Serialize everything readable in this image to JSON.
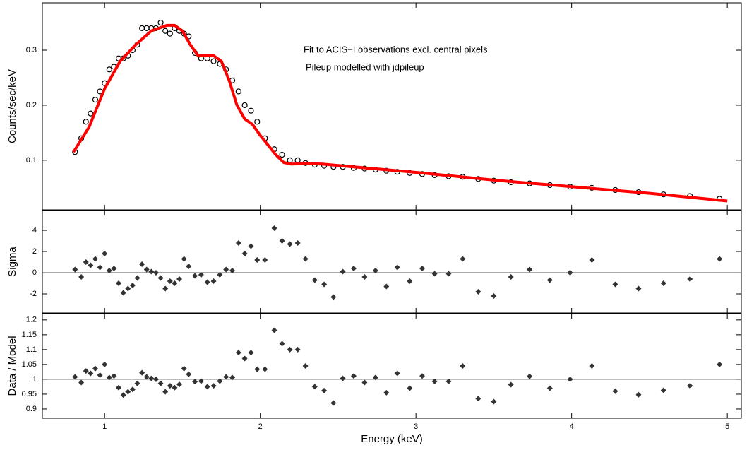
{
  "chart_data": [
    {
      "type": "scatter",
      "ylabel": "Counts/sec/keV",
      "marker": "circle",
      "color": "#000000",
      "annotations": [
        "Fit to ACIS−I observations excl. central pixels",
        "Pileup modelled with jdpileup"
      ],
      "xlim": [
        0.6,
        5.09
      ],
      "xticks": [
        1,
        2,
        3,
        4,
        5
      ],
      "ylim": [
        0.01,
        0.386
      ],
      "yticks": [
        0.1,
        0.2,
        0.3
      ],
      "x": [
        0.81,
        0.85,
        0.88,
        0.91,
        0.94,
        0.97,
        1.0,
        1.03,
        1.06,
        1.09,
        1.12,
        1.15,
        1.18,
        1.21,
        1.24,
        1.27,
        1.3,
        1.33,
        1.36,
        1.39,
        1.42,
        1.45,
        1.48,
        1.51,
        1.54,
        1.58,
        1.62,
        1.66,
        1.7,
        1.74,
        1.78,
        1.82,
        1.86,
        1.9,
        1.94,
        1.98,
        2.03,
        2.09,
        2.14,
        2.19,
        2.24,
        2.29,
        2.35,
        2.41,
        2.47,
        2.53,
        2.6,
        2.67,
        2.74,
        2.81,
        2.88,
        2.96,
        3.04,
        3.12,
        3.21,
        3.3,
        3.4,
        3.5,
        3.61,
        3.73,
        3.86,
        3.99,
        4.13,
        4.28,
        4.43,
        4.59,
        4.76,
        4.95
      ],
      "values": [
        0.115,
        0.14,
        0.17,
        0.185,
        0.21,
        0.225,
        0.24,
        0.265,
        0.27,
        0.285,
        0.285,
        0.29,
        0.3,
        0.31,
        0.34,
        0.34,
        0.34,
        0.34,
        0.35,
        0.335,
        0.33,
        0.34,
        0.335,
        0.33,
        0.325,
        0.295,
        0.285,
        0.285,
        0.28,
        0.275,
        0.265,
        0.245,
        0.225,
        0.2,
        0.19,
        0.17,
        0.14,
        0.12,
        0.11,
        0.1,
        0.1,
        0.095,
        0.092,
        0.09,
        0.088,
        0.088,
        0.086,
        0.085,
        0.083,
        0.081,
        0.079,
        0.077,
        0.075,
        0.073,
        0.071,
        0.07,
        0.066,
        0.063,
        0.06,
        0.058,
        0.055,
        0.052,
        0.05,
        0.046,
        0.042,
        0.038,
        0.035,
        0.03
      ],
      "model": {
        "type": "line",
        "color": "#ff0000",
        "x": [
          0.8,
          0.9,
          1.0,
          1.1,
          1.2,
          1.3,
          1.4,
          1.45,
          1.5,
          1.55,
          1.6,
          1.7,
          1.75,
          1.8,
          1.85,
          1.9,
          1.95,
          2.0,
          2.1,
          2.15,
          2.2,
          2.3,
          2.4,
          2.6,
          3.0,
          3.5,
          4.0,
          4.5,
          5.0
        ],
        "values": [
          0.115,
          0.16,
          0.23,
          0.28,
          0.31,
          0.335,
          0.345,
          0.345,
          0.335,
          0.31,
          0.29,
          0.29,
          0.28,
          0.245,
          0.2,
          0.175,
          0.165,
          0.145,
          0.11,
          0.096,
          0.093,
          0.094,
          0.093,
          0.088,
          0.078,
          0.064,
          0.052,
          0.04,
          0.026
        ]
      }
    },
    {
      "type": "scatter",
      "ylabel": "Sigma",
      "marker": "diamond",
      "color": "#333333",
      "hline": 0,
      "xlim": [
        0.6,
        5.09
      ],
      "xticks": [
        1,
        2,
        3,
        4,
        5
      ],
      "ylim": [
        -3.8,
        5.87
      ],
      "yticks": [
        -2,
        0,
        2,
        4
      ],
      "x": [
        0.81,
        0.85,
        0.88,
        0.91,
        0.94,
        0.97,
        1.0,
        1.03,
        1.06,
        1.09,
        1.12,
        1.15,
        1.18,
        1.21,
        1.24,
        1.27,
        1.3,
        1.33,
        1.36,
        1.39,
        1.42,
        1.45,
        1.48,
        1.51,
        1.54,
        1.58,
        1.62,
        1.66,
        1.7,
        1.74,
        1.78,
        1.82,
        1.86,
        1.9,
        1.94,
        1.98,
        2.03,
        2.09,
        2.14,
        2.19,
        2.24,
        2.29,
        2.35,
        2.41,
        2.47,
        2.53,
        2.6,
        2.67,
        2.74,
        2.81,
        2.88,
        2.96,
        3.04,
        3.12,
        3.21,
        3.3,
        3.4,
        3.5,
        3.61,
        3.73,
        3.86,
        3.99,
        4.13,
        4.28,
        4.43,
        4.59,
        4.76,
        4.95
      ],
      "values": [
        0.3,
        -0.4,
        1,
        0.7,
        1.3,
        0.5,
        1.8,
        0.2,
        0.4,
        -1,
        -1.9,
        -1.5,
        -1.2,
        -0.5,
        0.8,
        0.3,
        0.1,
        0,
        -0.5,
        -1.5,
        -0.8,
        -1,
        -0.6,
        1.3,
        0.6,
        -0.3,
        -0.2,
        -0.9,
        -0.8,
        -0.2,
        0.3,
        0.2,
        2.8,
        1.8,
        2.5,
        1.2,
        1.2,
        4.2,
        3,
        2.7,
        2.8,
        1.3,
        -0.7,
        -1.1,
        -2.3,
        0.1,
        0.4,
        -0.4,
        0.2,
        -1.3,
        0.5,
        -0.8,
        0.4,
        -0.1,
        -0.1,
        1.3,
        -1.8,
        -2.2,
        -0.4,
        0.3,
        -0.7,
        0,
        1.2,
        -1.1,
        -1.5,
        -1,
        -0.6,
        1.3
      ]
    },
    {
      "type": "scatter",
      "ylabel": "Data / Model",
      "xlabel": "Energy (keV)",
      "marker": "diamond",
      "color": "#333333",
      "hline": 1,
      "xlim": [
        0.6,
        5.09
      ],
      "xticks": [
        1,
        2,
        3,
        4,
        5
      ],
      "ylim": [
        0.869,
        1.221
      ],
      "yticks": [
        0.9,
        0.95,
        1,
        1.05,
        1.1,
        1.15,
        1.2
      ],
      "x": [
        0.81,
        0.85,
        0.88,
        0.91,
        0.94,
        0.97,
        1.0,
        1.03,
        1.06,
        1.09,
        1.12,
        1.15,
        1.18,
        1.21,
        1.24,
        1.27,
        1.3,
        1.33,
        1.36,
        1.39,
        1.42,
        1.45,
        1.48,
        1.51,
        1.54,
        1.58,
        1.62,
        1.66,
        1.7,
        1.74,
        1.78,
        1.82,
        1.86,
        1.9,
        1.94,
        1.98,
        2.03,
        2.09,
        2.14,
        2.19,
        2.24,
        2.29,
        2.35,
        2.41,
        2.47,
        2.53,
        2.6,
        2.67,
        2.74,
        2.81,
        2.88,
        2.96,
        3.04,
        3.12,
        3.21,
        3.3,
        3.4,
        3.5,
        3.61,
        3.73,
        3.86,
        3.99,
        4.13,
        4.28,
        4.43,
        4.59,
        4.76,
        4.95
      ],
      "values": [
        1.008,
        0.989,
        1.028,
        1.02,
        1.036,
        1.014,
        1.05,
        1.006,
        1.011,
        0.972,
        0.947,
        0.958,
        0.966,
        0.986,
        1.022,
        1.008,
        1.003,
        1,
        0.986,
        0.958,
        0.978,
        0.972,
        0.983,
        1.036,
        1.017,
        0.992,
        0.994,
        0.975,
        0.978,
        0.994,
        1.008,
        1.006,
        1.09,
        1.07,
        1.09,
        1.034,
        1.034,
        1.165,
        1.12,
        1.1,
        1.1,
        1.045,
        0.975,
        0.962,
        0.92,
        1.003,
        1.011,
        0.989,
        1.006,
        0.955,
        1.02,
        0.97,
        1.011,
        0.993,
        0.993,
        1.045,
        0.935,
        0.925,
        0.982,
        1.01,
        0.97,
        1,
        1.045,
        0.96,
        0.948,
        0.963,
        0.978,
        1.05
      ]
    }
  ]
}
